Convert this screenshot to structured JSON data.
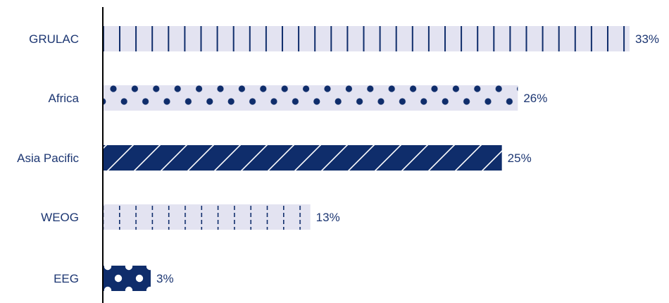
{
  "chart_data": {
    "type": "bar",
    "orientation": "horizontal",
    "categories": [
      "GRULAC",
      "Africa",
      "Asia Pacific",
      "WEOG",
      "EEG"
    ],
    "values": [
      33,
      26,
      25,
      13,
      3
    ],
    "value_labels": [
      "33%",
      "26%",
      "25%",
      "13%",
      "3%"
    ],
    "unit": "%",
    "xlim": [
      0,
      33
    ],
    "grid": false,
    "legend": "none",
    "bar_styles": [
      {
        "fill": "#e3e3f1",
        "pattern": "vertical-lines",
        "pattern_color": "#0f2d6b"
      },
      {
        "fill": "#e3e3f1",
        "pattern": "dots",
        "pattern_color": "#0f2d6b"
      },
      {
        "fill": "#0f2d6b",
        "pattern": "diagonal-lines",
        "pattern_color": "#ffffff"
      },
      {
        "fill": "#e3e3f1",
        "pattern": "dashed-vertical-lines",
        "pattern_color": "#0f2d6b"
      },
      {
        "fill": "#0f2d6b",
        "pattern": "dots",
        "pattern_color": "#ffffff"
      }
    ],
    "label_color": "#1c3672",
    "axis_color": "#000000"
  }
}
